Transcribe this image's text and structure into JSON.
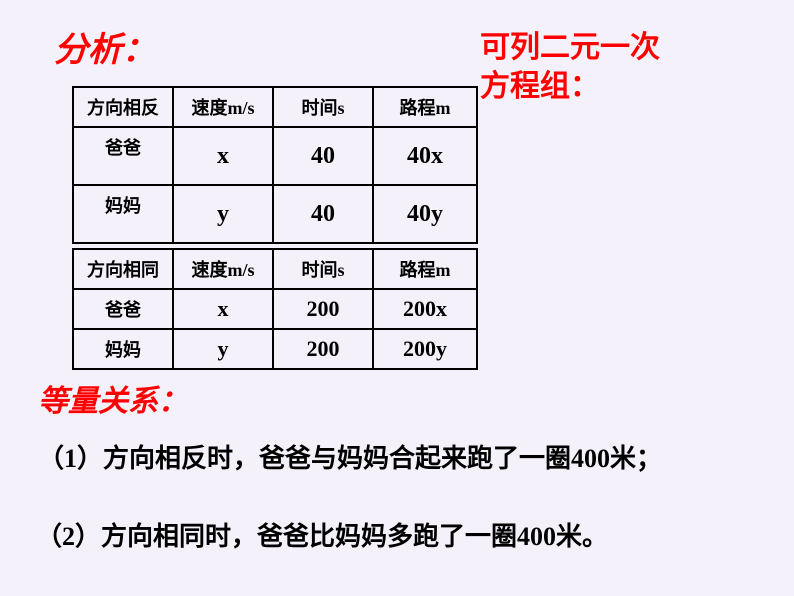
{
  "title": "分析：",
  "sidenote_l1": "可列二元一次",
  "sidenote_l2": "方程组：",
  "table1": {
    "header": [
      "方向相反",
      "速度m/s",
      "时间s",
      "路程m"
    ],
    "rows": [
      {
        "label": "爸爸",
        "speed": "x",
        "time": "40",
        "dist": "40x"
      },
      {
        "label": "妈妈",
        "speed": "y",
        "time": "40",
        "dist": "40y"
      }
    ]
  },
  "table2": {
    "header": [
      "方向相同",
      "速度m/s",
      "时间s",
      "路程m"
    ],
    "rows": [
      {
        "label": "爸爸",
        "speed": "x",
        "time": "200",
        "dist": "200x"
      },
      {
        "label": "妈妈",
        "speed": "y",
        "time": "200",
        "dist": "200y"
      }
    ]
  },
  "relation_title": "等量关系：",
  "line1": "（1）方向相反时，爸爸与妈妈合起来跑了一圈400米；",
  "line2": "（2）方向相同时，爸爸比妈妈多跑了一圈400米。",
  "colors": {
    "background": "#f4f1fa",
    "accent": "#ff0000",
    "text": "#000000",
    "border": "#000000"
  }
}
